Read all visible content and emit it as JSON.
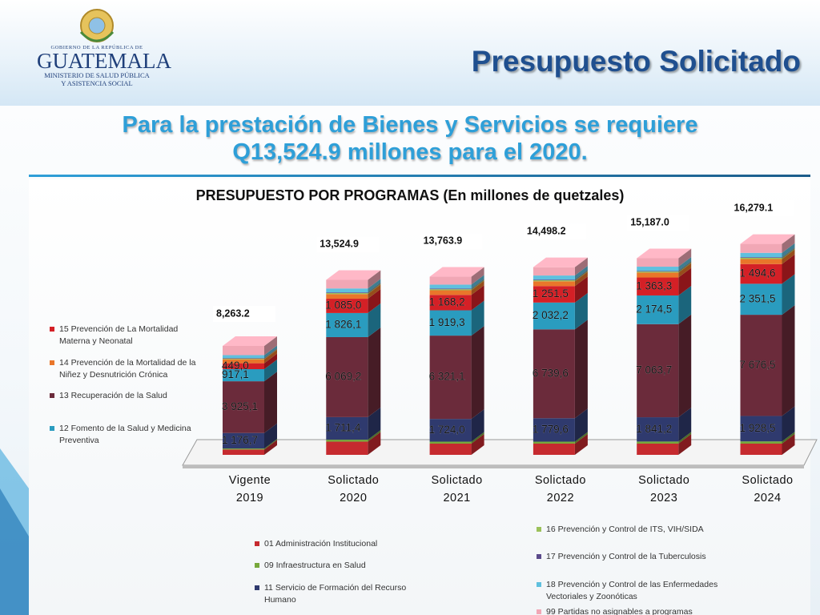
{
  "header": {
    "logo_small": "GOBIERNO DE LA REPÚBLICA DE",
    "logo_name": "GUATEMALA",
    "logo_line1": "MINISTERIO DE SALUD PÚBLICA",
    "logo_line2": "Y ASISTENCIA SOCIAL",
    "title": "Presupuesto Solicitado",
    "subtitle_line1": "Para la prestación de Bienes y Servicios se requiere",
    "subtitle_line2": "Q13,524.9 millones para el 2020."
  },
  "chart_data": {
    "type": "stacked_bar_3d",
    "title": "PRESUPUESTO POR PROGRAMAS  (En millones de quetzales)",
    "categories": [
      "Vigente 2019",
      "Solictado 2020",
      "Solictado 2021",
      "Solictado 2022",
      "Solictado 2023",
      "Solictado 2024"
    ],
    "series": [
      {
        "name": "01 Administración Institucional",
        "color": "#c62a2f",
        "values": [
          400,
          1000,
          850,
          850,
          850,
          850
        ]
      },
      {
        "name": "09 Infraestructura en Salud",
        "color": "#77a83b",
        "values": [
          80,
          150,
          150,
          150,
          160,
          170
        ]
      },
      {
        "name": "11 Servicio de Formación del Recurso Humano",
        "color": "#2f3a6e",
        "values": [
          1176.7,
          1711.4,
          1724.0,
          1779.6,
          1841.2,
          1928.5
        ],
        "value_labels": [
          "1 176,7",
          "1 711,4",
          "1 724,0",
          "1 779,6",
          "1 841,2",
          "1 928,5"
        ]
      },
      {
        "name": "13 Recuperación de la Salud",
        "color": "#6b2b3b",
        "values": [
          3925.1,
          6069.2,
          6321.1,
          6739.6,
          7063.7,
          7676.5
        ],
        "value_labels": [
          "3 925,1",
          "6 069,2",
          "6 321,1",
          "6 739,6",
          "7 063,7",
          "7 676,5"
        ]
      },
      {
        "name": "12 Fomento de la Salud y Medicina Preventiva",
        "color": "#2a9cbf",
        "values": [
          917.1,
          1826.1,
          1919.3,
          2032.2,
          2174.5,
          2351.5
        ],
        "value_labels": [
          "917,1",
          "1 826,1",
          "1 919,3",
          "2 032,2",
          "2 174,5",
          "2 351,5"
        ]
      },
      {
        "name": "15 Prevención de La Mortalidad Materna y Neonatal",
        "color": "#d42026",
        "values": [
          449.0,
          1085.0,
          1168.2,
          1251.5,
          1363.3,
          1494.6
        ],
        "value_labels": [
          "449,0",
          "1 085,0",
          "1 168,2",
          "1 251,5",
          "1 363,3",
          "1 494,6"
        ]
      },
      {
        "name": "14 Prevención de la Mortalidad de la Niñez y Desnutrición Crónica",
        "color": "#e9762a",
        "values": [
          300,
          350,
          350,
          360,
          370,
          380
        ]
      },
      {
        "name": "16 Prevención y Control de ITS, VIH/SIDA",
        "color": "#9bc15a",
        "values": [
          60,
          80,
          80,
          80,
          80,
          90
        ]
      },
      {
        "name": "17 Prevención y Control de la Tuberculosis",
        "color": "#5b4a8b",
        "values": [
          40,
          50,
          50,
          50,
          50,
          50
        ]
      },
      {
        "name": "18 Prevención y Control de las Enfermedades Vectoriales y Zoonóticas",
        "color": "#5fc0de",
        "values": [
          215,
          300,
          300,
          310,
          320,
          330
        ]
      },
      {
        "name": "99 Partidas no asignables a programas",
        "color": "#f1a7b5",
        "values": [
          700,
          650,
          600,
          630,
          640,
          680
        ]
      }
    ],
    "totals": {
      "values": [
        8263.2,
        13524.9,
        13763.9,
        14498.2,
        15187.0,
        16279.1
      ],
      "value_labels": [
        "8,263.2",
        "13,524.9",
        "13,763.9",
        "14,498.2",
        "15,187.0",
        "16,279.1"
      ]
    }
  }
}
